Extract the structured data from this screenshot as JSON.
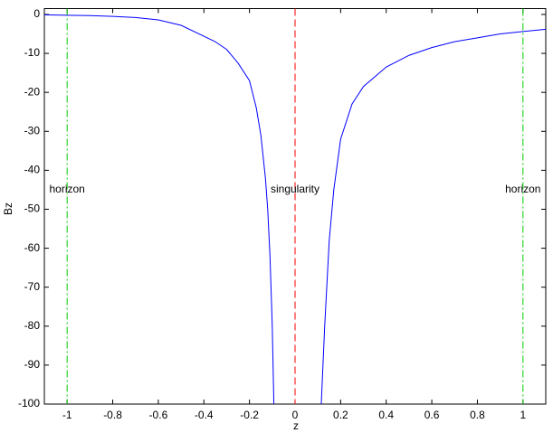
{
  "chart_data": {
    "type": "line",
    "x_label": "z",
    "y_label": "Bz",
    "x": [
      -1.1,
      -1.0,
      -0.9,
      -0.8,
      -0.7,
      -0.6,
      -0.5,
      -0.4,
      -0.35,
      -0.3,
      -0.25,
      -0.2,
      -0.17,
      -0.15,
      -0.13,
      -0.12,
      -0.11,
      -0.1,
      -0.093,
      0,
      0.115,
      0.13,
      0.15,
      0.17,
      0.2,
      0.25,
      0.3,
      0.4,
      0.5,
      0.6,
      0.7,
      0.8,
      0.9,
      1.0,
      1.1
    ],
    "series": [
      {
        "color": "#0000ff",
        "values": [
          -0.1,
          -0.2,
          -0.3,
          -0.5,
          -0.8,
          -1.4,
          -2.8,
          -5.6,
          -7,
          -9,
          -12.5,
          -17,
          -24,
          -31,
          -42,
          -50,
          -62,
          -80,
          -100,
          null,
          -100,
          -80,
          -58,
          -45,
          -32,
          -23,
          -18.5,
          -13.5,
          -10.5,
          -8.5,
          -7,
          -6,
          -5,
          -4.4,
          -3.8
        ]
      }
    ],
    "markers": [
      {
        "x": -1,
        "label": "horizon",
        "color": "#00cc00",
        "style": "dashdot"
      },
      {
        "x": 0,
        "label": "singularity",
        "color": "#ff0000",
        "style": "dash"
      },
      {
        "x": 1,
        "label": "horizon",
        "color": "#00cc00",
        "style": "dashdot"
      }
    ],
    "xlim": [
      -1.1,
      1.1
    ],
    "ylim": [
      -100,
      1.5
    ],
    "xticks": [
      -1,
      -0.8,
      -0.6,
      -0.4,
      -0.2,
      0,
      0.2,
      0.4,
      0.6,
      0.8,
      1
    ],
    "yticks": [
      0,
      -10,
      -20,
      -30,
      -40,
      -50,
      -60,
      -70,
      -80,
      -90,
      -100
    ]
  }
}
